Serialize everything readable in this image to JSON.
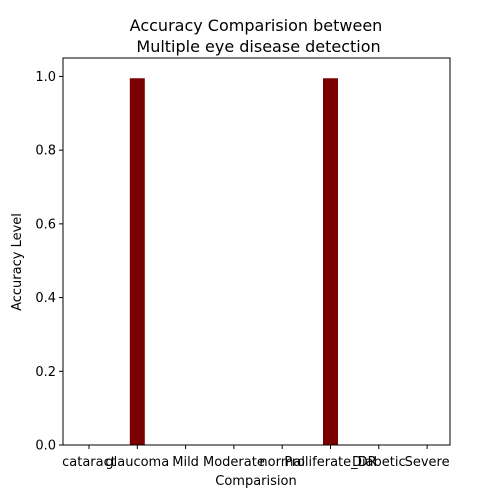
{
  "chart_data": {
    "type": "bar",
    "title_lines": [
      "Accuracy Comparision between",
      " Multiple eye disease detection"
    ],
    "xlabel": "Comparision",
    "ylabel": "Accuracy Level",
    "categories": [
      "cataract",
      "glaucoma",
      "Mild",
      "Moderate",
      "normal",
      "Proliferate_DR",
      "Diabetic",
      "Severe"
    ],
    "values": [
      0,
      0.995,
      0,
      0,
      0,
      0.995,
      0,
      0
    ],
    "ylim": [
      0,
      1.05
    ],
    "yticks": [
      "0.0",
      "0.2",
      "0.4",
      "0.6",
      "0.8",
      "1.0"
    ],
    "grid": false,
    "bar_color": "#7a0000"
  }
}
